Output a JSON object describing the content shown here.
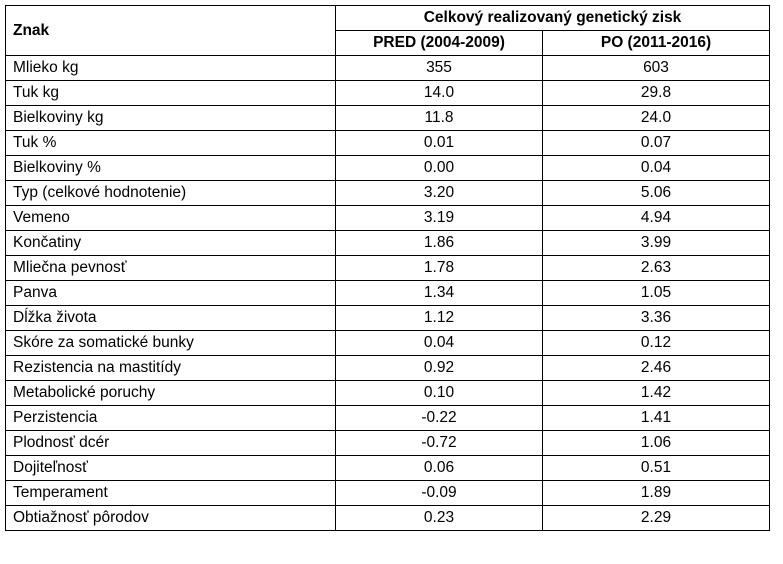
{
  "table": {
    "corner_header": "Znak",
    "group_header": "Celkový realizovaný genetický zisk",
    "columns": [
      "PRED (2004-2009)",
      "PO (2011-2016)"
    ],
    "rows": [
      {
        "label": "Mlieko kg",
        "pred": "355",
        "po": "603"
      },
      {
        "label": "Tuk kg",
        "pred": "14.0",
        "po": "29.8"
      },
      {
        "label": "Bielkoviny kg",
        "pred": "11.8",
        "po": "24.0"
      },
      {
        "label": "Tuk %",
        "pred": "0.01",
        "po": "0.07"
      },
      {
        "label": "Bielkoviny %",
        "pred": "0.00",
        "po": "0.04"
      },
      {
        "label": "Typ (celkové hodnotenie)",
        "pred": "3.20",
        "po": "5.06"
      },
      {
        "label": "Vemeno",
        "pred": "3.19",
        "po": "4.94"
      },
      {
        "label": "Končatiny",
        "pred": "1.86",
        "po": "3.99"
      },
      {
        "label": "Mliečna pevnosť",
        "pred": "1.78",
        "po": "2.63"
      },
      {
        "label": "Panva",
        "pred": "1.34",
        "po": "1.05"
      },
      {
        "label": "Dĺžka života",
        "pred": "1.12",
        "po": "3.36"
      },
      {
        "label": "Skóre za somatické bunky",
        "pred": "0.04",
        "po": "0.12"
      },
      {
        "label": "Rezistencia na mastitídy",
        "pred": "0.92",
        "po": "2.46"
      },
      {
        "label": "Metabolické poruchy",
        "pred": "0.10",
        "po": "1.42"
      },
      {
        "label": "Perzistencia",
        "pred": "-0.22",
        "po": "1.41"
      },
      {
        "label": "Plodnosť dcér",
        "pred": "-0.72",
        "po": "1.06"
      },
      {
        "label": "Dojiteľnosť",
        "pred": "0.06",
        "po": "0.51"
      },
      {
        "label": "Temperament",
        "pred": "-0.09",
        "po": "1.89"
      },
      {
        "label": "Obtiažnosť pôrodov",
        "pred": "0.23",
        "po": "2.29"
      }
    ]
  }
}
